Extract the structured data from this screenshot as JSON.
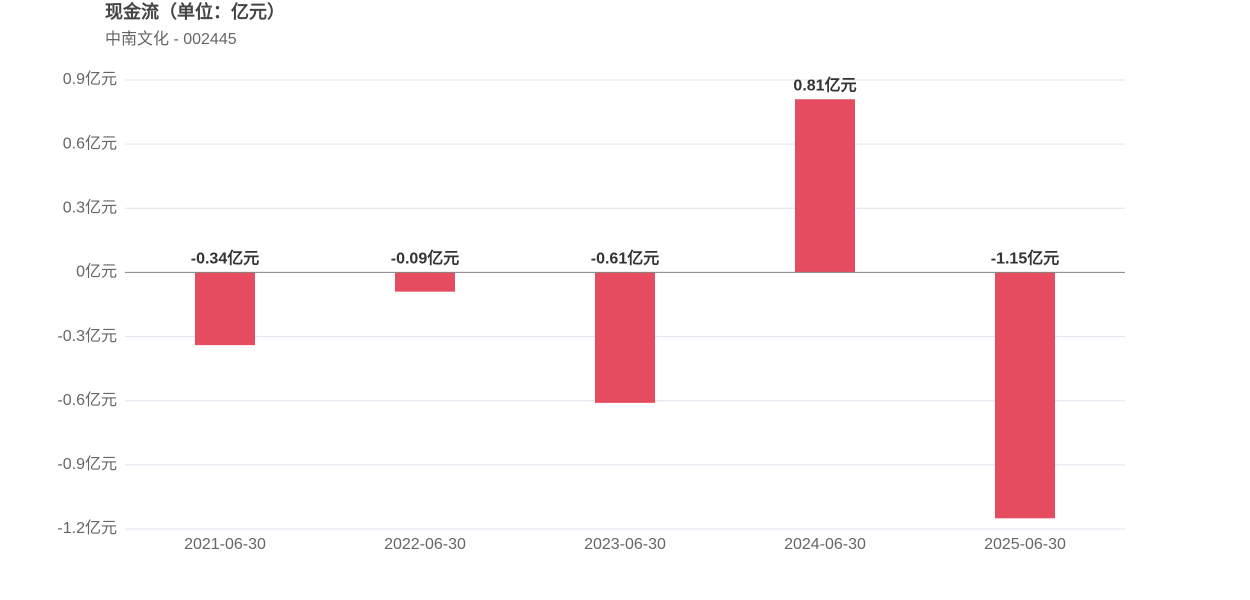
{
  "chart_data": {
    "type": "bar",
    "title": "现金流（单位：亿元）",
    "subtitle": "中南文化 - 002445",
    "categories": [
      "2021-06-30",
      "2022-06-30",
      "2023-06-30",
      "2024-06-30",
      "2025-06-30"
    ],
    "values": [
      -0.34,
      -0.09,
      -0.61,
      0.81,
      -1.15
    ],
    "value_labels": [
      "-0.34亿元",
      "-0.09亿元",
      "-0.61亿元",
      "0.81亿元",
      "-1.15亿元"
    ],
    "color": "#e64c60",
    "ylim": [
      -1.2,
      0.9
    ],
    "yticks": [
      {
        "value": 0.9,
        "label": "0.9亿元"
      },
      {
        "value": 0.6,
        "label": "0.6亿元"
      },
      {
        "value": 0.3,
        "label": "0.3亿元"
      },
      {
        "value": 0,
        "label": "0亿元"
      },
      {
        "value": -0.3,
        "label": "-0.3亿元"
      },
      {
        "value": -0.6,
        "label": "-0.6亿元"
      },
      {
        "value": -0.9,
        "label": "-0.9亿元"
      },
      {
        "value": -1.2,
        "label": "-1.2亿元"
      }
    ],
    "grid": true
  }
}
